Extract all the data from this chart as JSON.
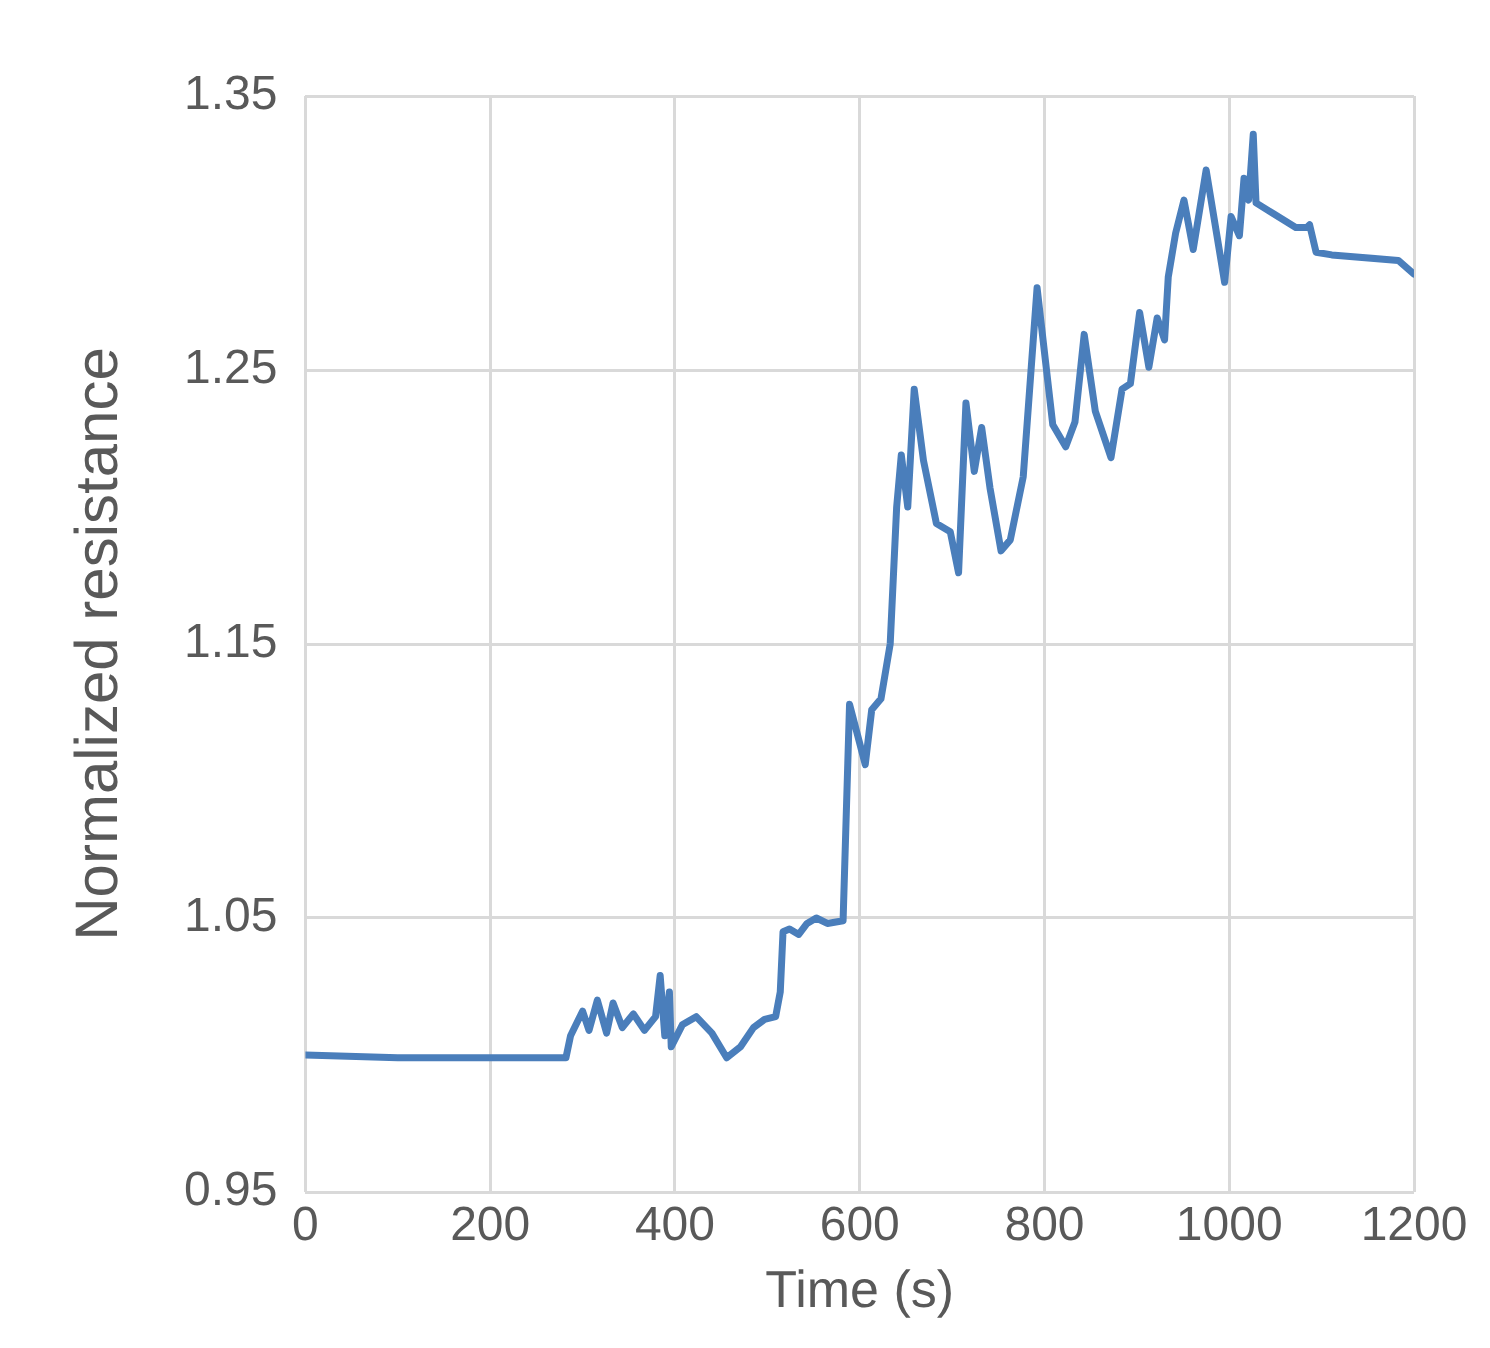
{
  "chart_data": {
    "type": "line",
    "xlabel": "Time (s)",
    "ylabel": "Normalized resistance",
    "xlim": [
      0,
      1200
    ],
    "xticks": [
      0,
      200,
      400,
      600,
      800,
      1000,
      1200
    ],
    "ylim": [
      0.95,
      1.35
    ],
    "yticks": [
      0.95,
      1.05,
      1.15,
      1.25,
      1.35
    ],
    "grid": true,
    "legend": false,
    "marker": "none",
    "line_style": "solid",
    "series": [
      {
        "color": "#4a7ebb",
        "x": [
          0,
          100,
          200,
          282,
          287,
          300,
          307,
          316,
          326,
          333,
          343,
          355,
          367,
          379,
          384,
          389,
          394,
          396,
          408,
          423,
          440,
          456,
          471,
          485,
          497,
          509,
          514,
          517,
          524,
          534,
          543,
          553,
          565,
          582,
          589,
          606,
          613,
          623,
          633,
          640,
          645,
          652,
          659,
          669,
          683,
          698,
          707,
          715,
          724,
          732,
          741,
          753,
          763,
          777,
          792,
          809,
          823,
          833,
          843,
          855,
          872,
          884,
          893,
          903,
          913,
          922,
          930,
          934,
          942,
          951,
          961,
          975,
          995,
          1002,
          1011,
          1016,
          1021,
          1026,
          1029,
          1048,
          1072,
          1084,
          1087,
          1094,
          1111,
          1183,
          1200
        ],
        "values": [
          1.0,
          0.999,
          0.999,
          0.999,
          1.007,
          1.016,
          1.009,
          1.02,
          1.008,
          1.019,
          1.01,
          1.015,
          1.009,
          1.014,
          1.029,
          1.007,
          1.023,
          1.003,
          1.011,
          1.014,
          1.008,
          0.999,
          1.003,
          1.01,
          1.013,
          1.014,
          1.023,
          1.045,
          1.046,
          1.044,
          1.048,
          1.05,
          1.048,
          1.049,
          1.128,
          1.106,
          1.126,
          1.13,
          1.15,
          1.2,
          1.219,
          1.2,
          1.243,
          1.217,
          1.194,
          1.191,
          1.176,
          1.238,
          1.213,
          1.229,
          1.207,
          1.184,
          1.188,
          1.211,
          1.28,
          1.23,
          1.222,
          1.231,
          1.263,
          1.235,
          1.218,
          1.243,
          1.245,
          1.271,
          1.251,
          1.269,
          1.261,
          1.284,
          1.3,
          1.312,
          1.294,
          1.323,
          1.282,
          1.306,
          1.299,
          1.32,
          1.312,
          1.336,
          1.311,
          1.307,
          1.302,
          1.302,
          1.303,
          1.293,
          1.292,
          1.29,
          1.285
        ]
      }
    ]
  }
}
